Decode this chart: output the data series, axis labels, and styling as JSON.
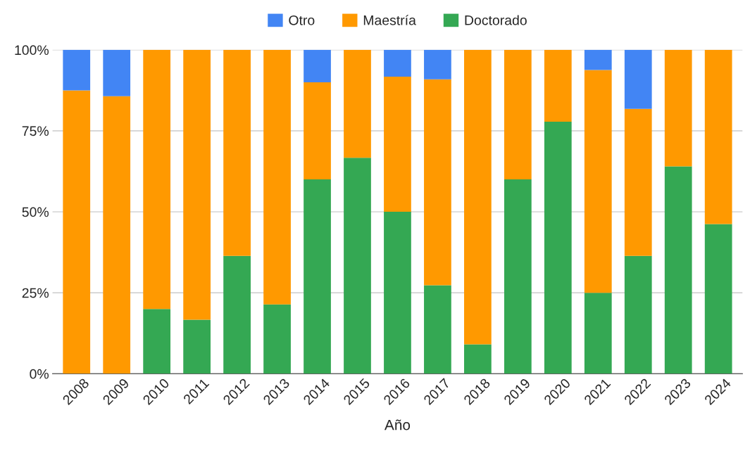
{
  "chart_data": {
    "type": "bar",
    "stacked": true,
    "xlabel": "Año",
    "categories": [
      "2008",
      "2009",
      "2010",
      "2011",
      "2012",
      "2013",
      "2014",
      "2015",
      "2016",
      "2017",
      "2018",
      "2019",
      "2020",
      "2021",
      "2022",
      "2023",
      "2024"
    ],
    "series": [
      {
        "name": "Doctorado",
        "color": "#34a853",
        "values": [
          null,
          null,
          20,
          16.7,
          36.4,
          21.4,
          60,
          66.7,
          50,
          27.3,
          9.1,
          60,
          77.8,
          25,
          36.4,
          64,
          46.2
        ]
      },
      {
        "name": "Maestría",
        "color": "#ff9900",
        "values": [
          87.5,
          85.7,
          80,
          83.3,
          63.6,
          78.6,
          30,
          33.3,
          41.7,
          63.6,
          90.9,
          40,
          22.2,
          68.8,
          45.4,
          36,
          53.8
        ]
      },
      {
        "name": "Otro",
        "color": "#4285f4",
        "values": [
          12.5,
          14.3,
          null,
          null,
          null,
          null,
          10,
          null,
          8.3,
          9.1,
          null,
          null,
          null,
          6.2,
          18.2,
          null,
          null
        ]
      }
    ],
    "ylim": [
      0,
      100
    ],
    "yticks": [
      {
        "value": 0,
        "label": "0%"
      },
      {
        "value": 25,
        "label": "25%"
      },
      {
        "value": 50,
        "label": "50%"
      },
      {
        "value": 75,
        "label": "75%"
      },
      {
        "value": 100,
        "label": "100%"
      }
    ],
    "grid": "y",
    "legend": "top"
  }
}
